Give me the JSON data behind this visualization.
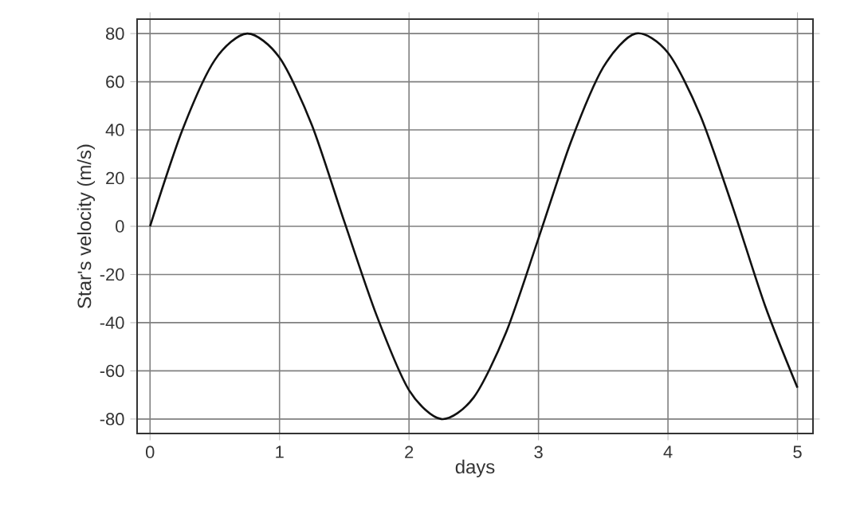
{
  "chart_data": {
    "type": "line",
    "xlabel": "days",
    "ylabel": "Star's velocity (m/s)",
    "x": [
      0,
      0.25,
      0.5,
      0.75,
      1.0,
      1.25,
      1.5,
      1.75,
      2.0,
      2.25,
      2.5,
      2.75,
      3.0,
      3.25,
      3.5,
      3.75,
      4.0,
      4.25,
      4.5,
      4.75,
      5.0
    ],
    "series": [
      {
        "color": "#111111",
        "values": [
          0,
          40,
          69,
          80,
          70,
          42,
          2,
          -37,
          -68,
          -80,
          -71,
          -44,
          -5,
          35,
          66,
          80,
          72,
          46,
          8,
          -33,
          -67
        ]
      }
    ],
    "xlim": [
      -0.1,
      5.12
    ],
    "ylim": [
      -86,
      86
    ],
    "xticks": [
      0,
      1,
      2,
      3,
      4,
      5
    ],
    "yticks": [
      -80,
      -60,
      -40,
      -20,
      0,
      20,
      40,
      60,
      80
    ],
    "grid": true,
    "marker": "none",
    "line_style": "solid"
  }
}
